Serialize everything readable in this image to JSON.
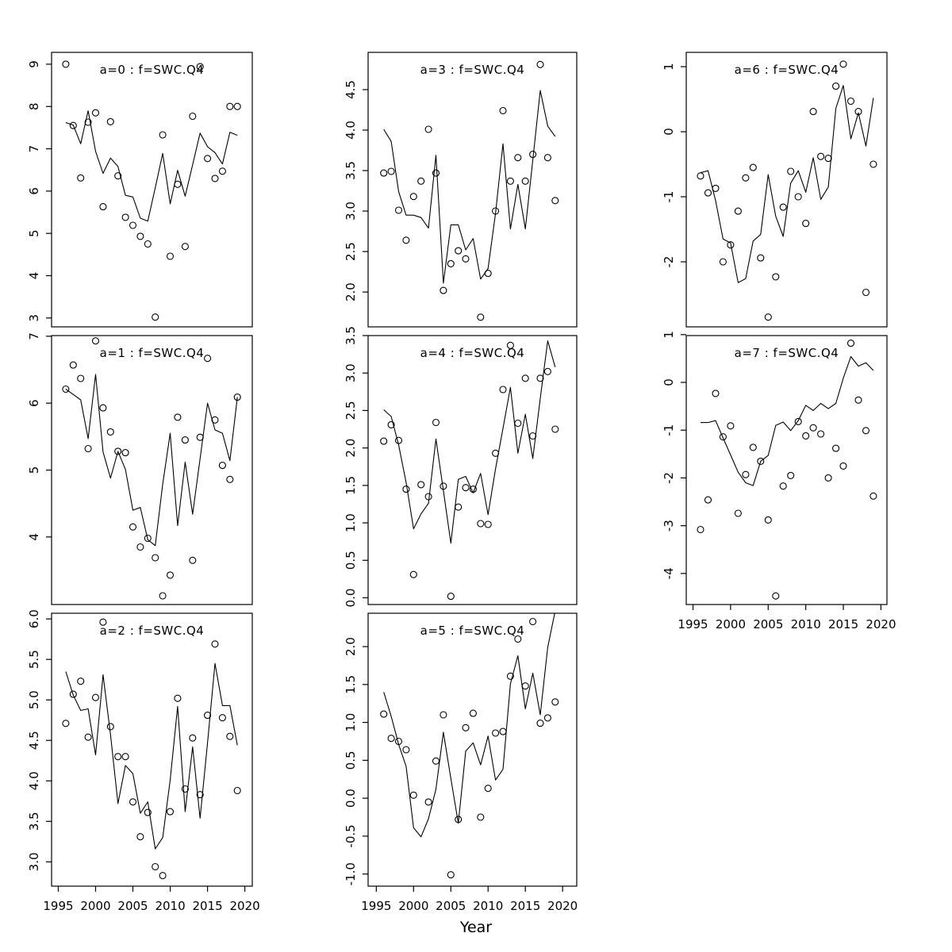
{
  "figure": {
    "xlabel": "Year",
    "background_color": "#ffffff",
    "ink_color": "#000000",
    "title_color": "#7f7f7f",
    "x_tick_years": [
      1995,
      2000,
      2005,
      2010,
      2015,
      2020
    ],
    "x_tick_labels": [
      "1995",
      "2000",
      "2005",
      "2010",
      "2015",
      "2020"
    ],
    "years": [
      1996,
      1997,
      1998,
      1999,
      2000,
      2001,
      2002,
      2003,
      2004,
      2005,
      2006,
      2007,
      2008,
      2009,
      2010,
      2011,
      2012,
      2013,
      2014,
      2015,
      2016,
      2017,
      2018,
      2019
    ]
  },
  "chart_data": [
    {
      "id": "a0",
      "type": "scatter",
      "title": "a=0 : f=SWC.Q4",
      "col": 0,
      "row": 0,
      "show_x_axis": false,
      "y_ticks": [
        9,
        8,
        7,
        6,
        5,
        4,
        3
      ],
      "y_tick_labels": [
        "9",
        "8",
        "7",
        "6",
        "5",
        "4",
        "3"
      ],
      "ylim": [
        2.79,
        9.28
      ],
      "xlim": [
        1994.1,
        2021.0
      ],
      "points": [
        9.0,
        7.55,
        6.31,
        7.63,
        7.85,
        5.63,
        7.64,
        6.36,
        5.38,
        5.19,
        4.93,
        4.75,
        3.02,
        7.33,
        4.46,
        6.16,
        4.69,
        7.77,
        8.94,
        6.77,
        6.3,
        6.47,
        8.0,
        8.0
      ],
      "line": [
        7.62,
        7.56,
        7.12,
        7.9,
        6.94,
        6.42,
        6.78,
        6.58,
        5.9,
        5.86,
        5.36,
        5.29,
        6.08,
        6.89,
        5.7,
        6.49,
        5.88,
        6.62,
        7.37,
        7.05,
        6.91,
        6.64,
        7.39,
        7.32
      ]
    },
    {
      "id": "a3",
      "type": "scatter",
      "title": "a=3 : f=SWC.Q4",
      "col": 1,
      "row": 0,
      "show_x_axis": false,
      "y_ticks": [
        4.5,
        4.0,
        3.5,
        3.0,
        2.5,
        2.0
      ],
      "y_tick_labels": [
        "4.5",
        "4.0",
        "3.5",
        "3.0",
        "2.5",
        "2.0"
      ],
      "ylim": [
        1.57,
        4.96
      ],
      "xlim": [
        1993.9,
        2021.9
      ],
      "points": [
        3.47,
        3.49,
        3.01,
        2.64,
        3.18,
        3.37,
        4.01,
        3.47,
        2.02,
        2.35,
        2.51,
        2.41,
        null,
        1.69,
        2.23,
        3.0,
        4.24,
        3.37,
        3.66,
        3.37,
        3.7,
        4.81,
        3.66,
        3.13
      ],
      "line": [
        4.01,
        3.86,
        3.24,
        2.95,
        2.95,
        2.92,
        2.79,
        3.69,
        2.11,
        2.83,
        2.83,
        2.52,
        2.66,
        2.16,
        2.29,
        2.97,
        3.83,
        2.78,
        3.33,
        2.78,
        3.63,
        4.49,
        4.05,
        3.92
      ]
    },
    {
      "id": "a6",
      "type": "scatter",
      "title": "a=6 : f=SWC.Q4",
      "col": 2,
      "row": 0,
      "show_x_axis": false,
      "y_ticks": [
        1,
        0,
        -1,
        -2
      ],
      "y_tick_labels": [
        "1",
        "0",
        "-1",
        "-2"
      ],
      "ylim": [
        -3.0,
        1.22
      ],
      "xlim": [
        1994.1,
        2020.8
      ],
      "points": [
        -0.68,
        -0.94,
        -0.87,
        -2.0,
        -1.74,
        -1.22,
        -0.71,
        -0.55,
        -1.94,
        -2.85,
        -2.23,
        -1.16,
        -0.61,
        -1.0,
        -1.41,
        0.31,
        -0.38,
        -0.41,
        0.7,
        1.04,
        0.47,
        0.31,
        -2.47,
        -0.5
      ],
      "line": [
        -0.63,
        -0.6,
        -1.06,
        -1.65,
        -1.71,
        -2.32,
        -2.26,
        -1.68,
        -1.58,
        -0.66,
        -1.3,
        -1.61,
        -0.79,
        -0.6,
        -0.93,
        -0.4,
        -1.04,
        -0.85,
        0.36,
        0.71,
        -0.11,
        0.29,
        -0.22,
        0.52
      ]
    },
    {
      "id": "a1",
      "type": "scatter",
      "title": "a=1 : f=SWC.Q4",
      "col": 0,
      "row": 1,
      "show_x_axis": false,
      "y_ticks": [
        7,
        6,
        5,
        4
      ],
      "y_tick_labels": [
        "7",
        "6",
        "5",
        "4"
      ],
      "ylim": [
        2.99,
        7.01
      ],
      "xlim": [
        1994.1,
        2021.0
      ],
      "points": [
        6.21,
        6.57,
        6.37,
        5.32,
        6.93,
        5.93,
        5.57,
        5.28,
        5.26,
        4.15,
        3.85,
        3.98,
        3.69,
        3.12,
        3.43,
        5.79,
        5.45,
        3.65,
        5.49,
        6.67,
        5.75,
        5.07,
        4.86,
        6.09
      ],
      "line": [
        6.21,
        6.13,
        6.05,
        5.47,
        6.43,
        5.27,
        4.88,
        5.28,
        5.01,
        4.4,
        4.44,
        3.96,
        3.87,
        4.79,
        5.55,
        4.17,
        5.12,
        4.34,
        5.17,
        6.0,
        5.6,
        5.55,
        5.14,
        6.09
      ]
    },
    {
      "id": "a4",
      "type": "scatter",
      "title": "a=4 : f=SWC.Q4",
      "col": 1,
      "row": 1,
      "show_x_axis": false,
      "y_ticks": [
        3.5,
        3.0,
        2.5,
        2.0,
        1.5,
        1.0,
        0.5,
        0.0
      ],
      "y_tick_labels": [
        "3.5",
        "3.0",
        "2.5",
        "2.0",
        "1.5",
        "1.0",
        "0.5",
        "0.0"
      ],
      "ylim": [
        -0.09,
        3.5
      ],
      "xlim": [
        1993.9,
        2021.9
      ],
      "points": [
        2.09,
        2.31,
        2.1,
        1.45,
        0.31,
        1.51,
        1.35,
        2.34,
        1.49,
        0.02,
        1.21,
        1.47,
        1.45,
        0.99,
        0.98,
        1.93,
        2.78,
        3.37,
        2.33,
        2.93,
        2.16,
        2.93,
        3.02,
        2.25
      ],
      "line": [
        2.51,
        2.42,
        2.04,
        1.54,
        0.92,
        1.12,
        1.26,
        2.12,
        1.43,
        0.73,
        1.58,
        1.62,
        1.4,
        1.66,
        1.11,
        1.72,
        2.26,
        2.81,
        1.93,
        2.45,
        1.86,
        2.66,
        3.43,
        3.08
      ]
    },
    {
      "id": "a7",
      "type": "scatter",
      "title": "a=7 : f=SWC.Q4",
      "col": 2,
      "row": 1,
      "show_x_axis": true,
      "y_ticks": [
        1,
        0,
        -1,
        -2,
        -3,
        -4
      ],
      "y_tick_labels": [
        "1",
        "0",
        "-1",
        "-2",
        "-3",
        "-4"
      ],
      "ylim": [
        -4.65,
        0.98
      ],
      "xlim": [
        1994.1,
        2020.8
      ],
      "points": [
        -3.08,
        -2.46,
        -0.23,
        -1.14,
        -0.91,
        -2.74,
        -1.93,
        -1.36,
        -1.65,
        -2.88,
        -4.47,
        -2.17,
        -1.95,
        -0.82,
        -1.12,
        -0.95,
        -1.08,
        -2.0,
        -1.38,
        -1.75,
        0.82,
        -0.37,
        -1.01,
        -2.38
      ],
      "line": [
        -0.84,
        -0.84,
        -0.8,
        -1.16,
        -1.52,
        -1.88,
        -2.1,
        -2.16,
        -1.65,
        -1.53,
        -0.9,
        -0.83,
        -1.01,
        -0.8,
        -0.48,
        -0.59,
        -0.44,
        -0.55,
        -0.44,
        0.09,
        0.54,
        0.34,
        0.41,
        0.25
      ]
    },
    {
      "id": "a2",
      "type": "scatter",
      "title": "a=2 : f=SWC.Q4",
      "col": 0,
      "row": 2,
      "show_x_axis": true,
      "y_ticks": [
        6.0,
        5.5,
        5.0,
        4.5,
        4.0,
        3.5,
        3.0
      ],
      "y_tick_labels": [
        "6.0",
        "5.5",
        "5.0",
        "4.5",
        "4.0",
        "3.5",
        "3.0"
      ],
      "ylim": [
        2.7,
        6.07
      ],
      "xlim": [
        1994.1,
        2021.0
      ],
      "points": [
        4.71,
        5.07,
        5.23,
        4.54,
        5.03,
        5.96,
        4.67,
        4.3,
        4.3,
        3.74,
        3.31,
        3.61,
        2.94,
        2.83,
        3.62,
        5.02,
        3.9,
        4.53,
        3.83,
        4.81,
        5.69,
        4.78,
        4.55,
        3.88
      ],
      "line": [
        5.35,
        5.06,
        4.87,
        4.89,
        4.32,
        5.31,
        4.57,
        3.72,
        4.19,
        4.09,
        3.6,
        3.74,
        3.16,
        3.3,
        4.01,
        4.92,
        3.62,
        4.42,
        3.54,
        4.47,
        5.45,
        4.93,
        4.93,
        4.44
      ]
    },
    {
      "id": "a5",
      "type": "scatter",
      "title": "a=5 : f=SWC.Q4",
      "col": 1,
      "row": 2,
      "show_x_axis": true,
      "y_ticks": [
        2.0,
        1.5,
        1.0,
        0.5,
        0.0,
        -0.5,
        -1.0
      ],
      "y_tick_labels": [
        "2.0",
        "1.5",
        "1.0",
        "0.5",
        "0.0",
        "-0.5",
        "-1.0"
      ],
      "ylim": [
        -1.16,
        2.44
      ],
      "xlim": [
        1993.9,
        2021.9
      ],
      "points": [
        1.11,
        0.79,
        0.75,
        0.64,
        0.04,
        null,
        -0.05,
        0.49,
        1.1,
        -1.01,
        -0.28,
        0.93,
        1.12,
        -0.25,
        0.13,
        0.86,
        0.88,
        1.61,
        2.1,
        1.48,
        2.33,
        0.99,
        1.06,
        1.27
      ],
      "line": [
        1.4,
        1.08,
        0.71,
        0.42,
        -0.39,
        -0.51,
        -0.27,
        0.12,
        0.87,
        0.26,
        -0.33,
        0.62,
        0.73,
        0.44,
        0.82,
        0.24,
        0.38,
        1.51,
        1.88,
        1.18,
        1.65,
        1.1,
        1.99,
        2.47
      ]
    }
  ]
}
